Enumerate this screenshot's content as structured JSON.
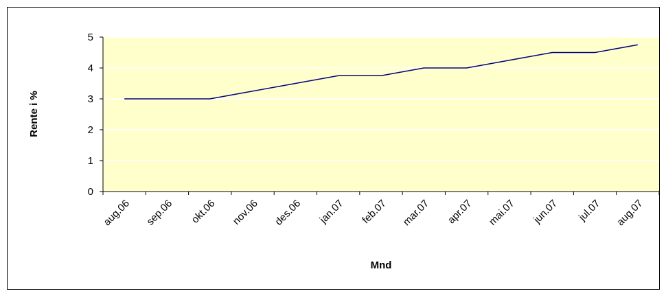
{
  "chart_data": {
    "type": "line",
    "categories": [
      "aug.06",
      "sep.06",
      "okt.06",
      "nov.06",
      "des.06",
      "jan.07",
      "feb.07",
      "mar.07",
      "apr.07",
      "mai.07",
      "jun.07",
      "jul.07",
      "aug.07"
    ],
    "series": [
      {
        "name": "Rente",
        "color": "#000080",
        "values": [
          3,
          3,
          3,
          3.25,
          3.5,
          3.75,
          3.75,
          4,
          4,
          4.25,
          4.5,
          4.5,
          4.75
        ]
      }
    ],
    "xlabel": "Mnd",
    "ylabel": "Rente i %",
    "ylim": [
      0,
      5
    ],
    "yticks": [
      0,
      1,
      2,
      3,
      4,
      5
    ],
    "grid": true,
    "plot_background": "#ffffcc"
  }
}
